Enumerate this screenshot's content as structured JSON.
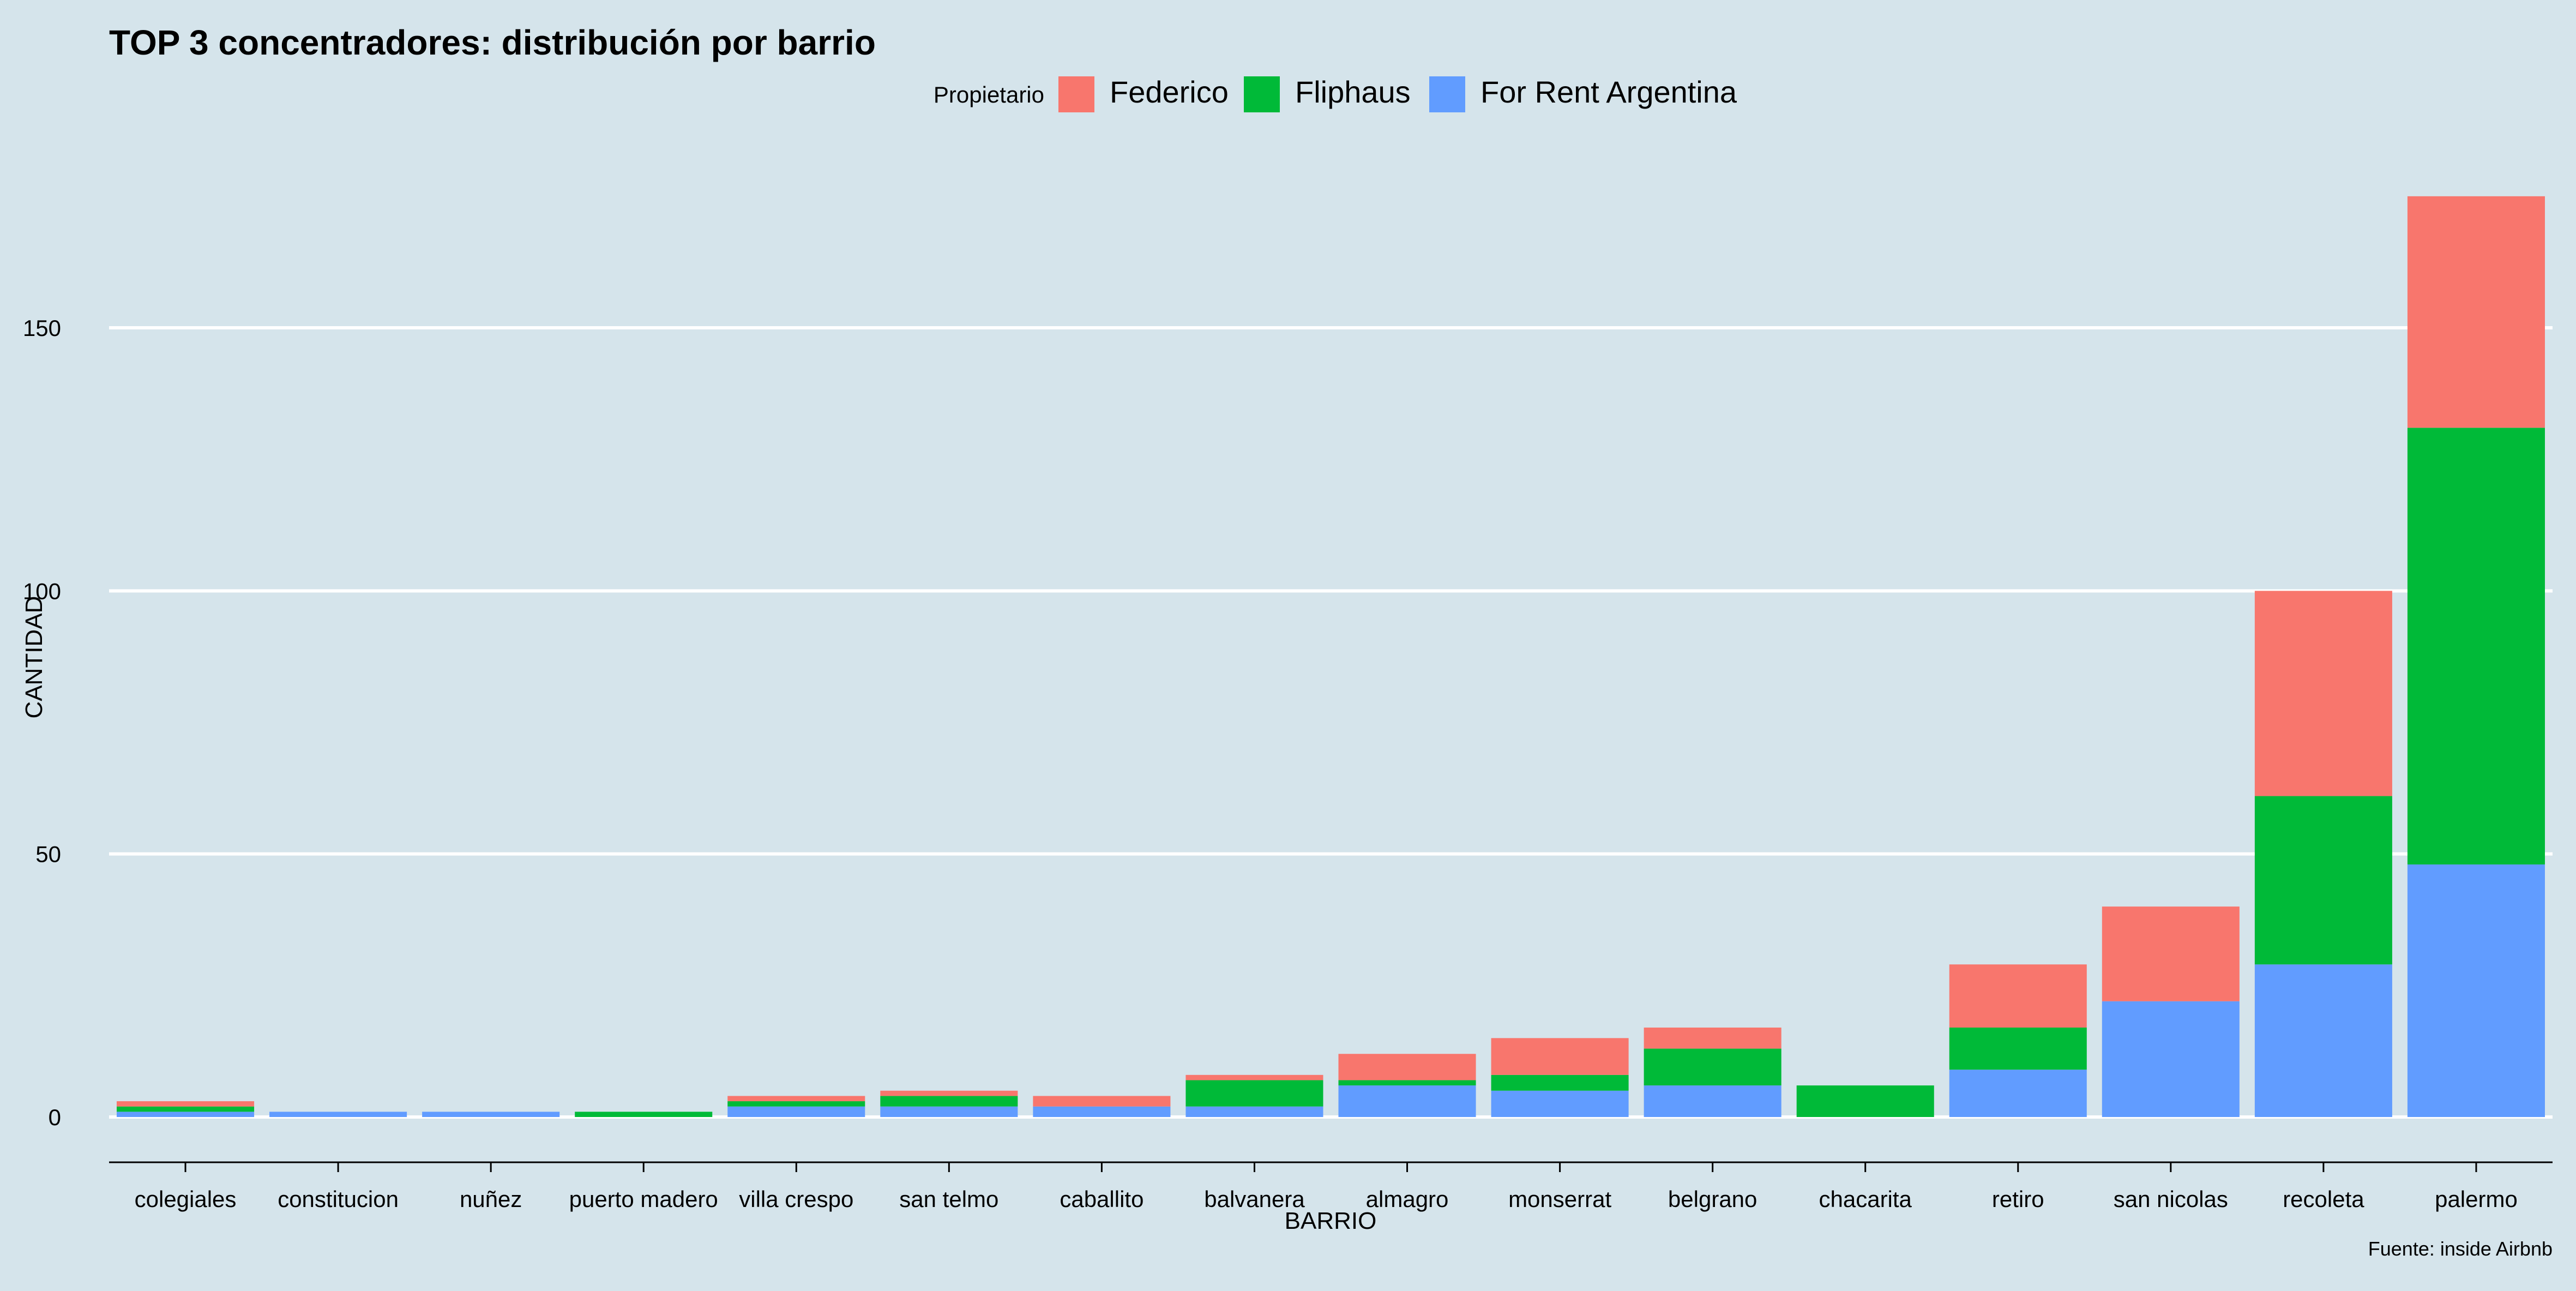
{
  "chart_data": {
    "type": "bar",
    "stacked": true,
    "title": "TOP 3 concentradores: distribución por barrio",
    "xlabel": "BARRIO",
    "ylabel": "CANTIDAD",
    "caption": "Fuente: inside Airbnb",
    "legend": {
      "title": "Propietario",
      "position": "top-center"
    },
    "categories": [
      "colegiales",
      "constitucion",
      "nuñez",
      "puerto madero",
      "villa crespo",
      "san telmo",
      "caballito",
      "balvanera",
      "almagro",
      "monserrat",
      "belgrano",
      "chacarita",
      "retiro",
      "san nicolas",
      "recoleta",
      "palermo"
    ],
    "series": [
      {
        "name": "For Rent Argentina",
        "color": "#619CFF",
        "values": [
          1,
          1,
          1,
          0,
          2,
          2,
          2,
          2,
          6,
          5,
          6,
          0,
          9,
          22,
          29,
          48
        ]
      },
      {
        "name": "Fliphaus",
        "color": "#00BA38",
        "values": [
          1,
          0,
          0,
          1,
          1,
          2,
          0,
          5,
          1,
          3,
          7,
          6,
          8,
          0,
          32,
          83
        ]
      },
      {
        "name": "Federico",
        "color": "#F8766D",
        "values": [
          1,
          0,
          0,
          0,
          1,
          1,
          2,
          1,
          5,
          7,
          4,
          0,
          12,
          18,
          39,
          44
        ]
      }
    ],
    "legend_order": [
      "Federico",
      "Fliphaus",
      "For Rent Argentina"
    ],
    "yticks": [
      0,
      50,
      100,
      150
    ],
    "ylim": [
      -8.75,
      183.75
    ],
    "grid": "horizontal-major"
  }
}
